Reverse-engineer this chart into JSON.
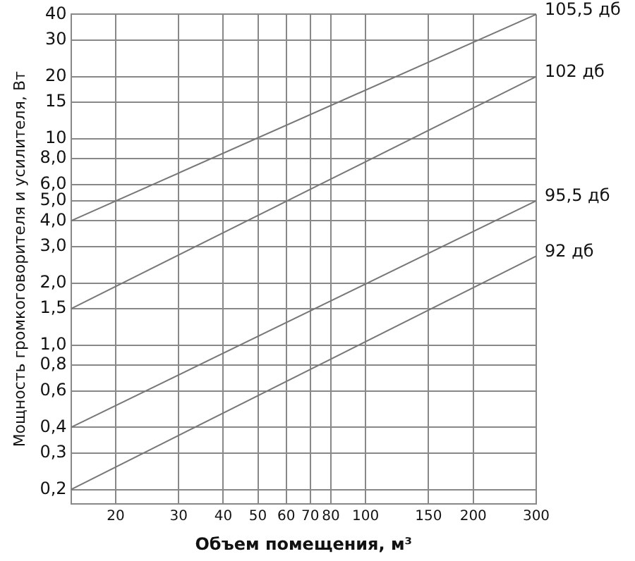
{
  "chart_data": {
    "type": "line",
    "xlabel": "Объем помещения, м³",
    "ylabel": "Мощность громкоговорителя и усилителя, Вт",
    "log": "xy",
    "grid": true,
    "legend": false,
    "marker": "none",
    "line_style": "solid",
    "xlim": [
      15,
      300
    ],
    "xticks": [
      20,
      30,
      40,
      50,
      60,
      70,
      80,
      100,
      150,
      200,
      300
    ],
    "ylim": [
      0.17,
      40
    ],
    "yticks": [
      {
        "value": 0.2,
        "label": "0,2"
      },
      {
        "value": 0.3,
        "label": "0,3"
      },
      {
        "value": 0.4,
        "label": "0,4"
      },
      {
        "value": 0.6,
        "label": "0,6"
      },
      {
        "value": 0.8,
        "label": "0,8"
      },
      {
        "value": 1,
        "label": "1,0"
      },
      {
        "value": 1.5,
        "label": "1,5"
      },
      {
        "value": 2,
        "label": "2,0"
      },
      {
        "value": 3,
        "label": "3,0"
      },
      {
        "value": 4,
        "label": "4,0"
      },
      {
        "value": 5,
        "label": "5,0"
      },
      {
        "value": 6,
        "label": "6,0"
      },
      {
        "value": 8,
        "label": "8,0"
      },
      10,
      15,
      20,
      30,
      40
    ],
    "x": [
      15,
      300
    ],
    "series": [
      {
        "name": "105,5 дб",
        "color": "#777777",
        "values": [
          4,
          40
        ]
      },
      {
        "name": "102 дб",
        "color": "#777777",
        "values": [
          1.5,
          20
        ]
      },
      {
        "name": "95,5 дб",
        "color": "#777777",
        "values": [
          0.4,
          5
        ]
      },
      {
        "name": "92 дб",
        "color": "#777777",
        "values": [
          0.2,
          2.7
        ]
      }
    ]
  }
}
